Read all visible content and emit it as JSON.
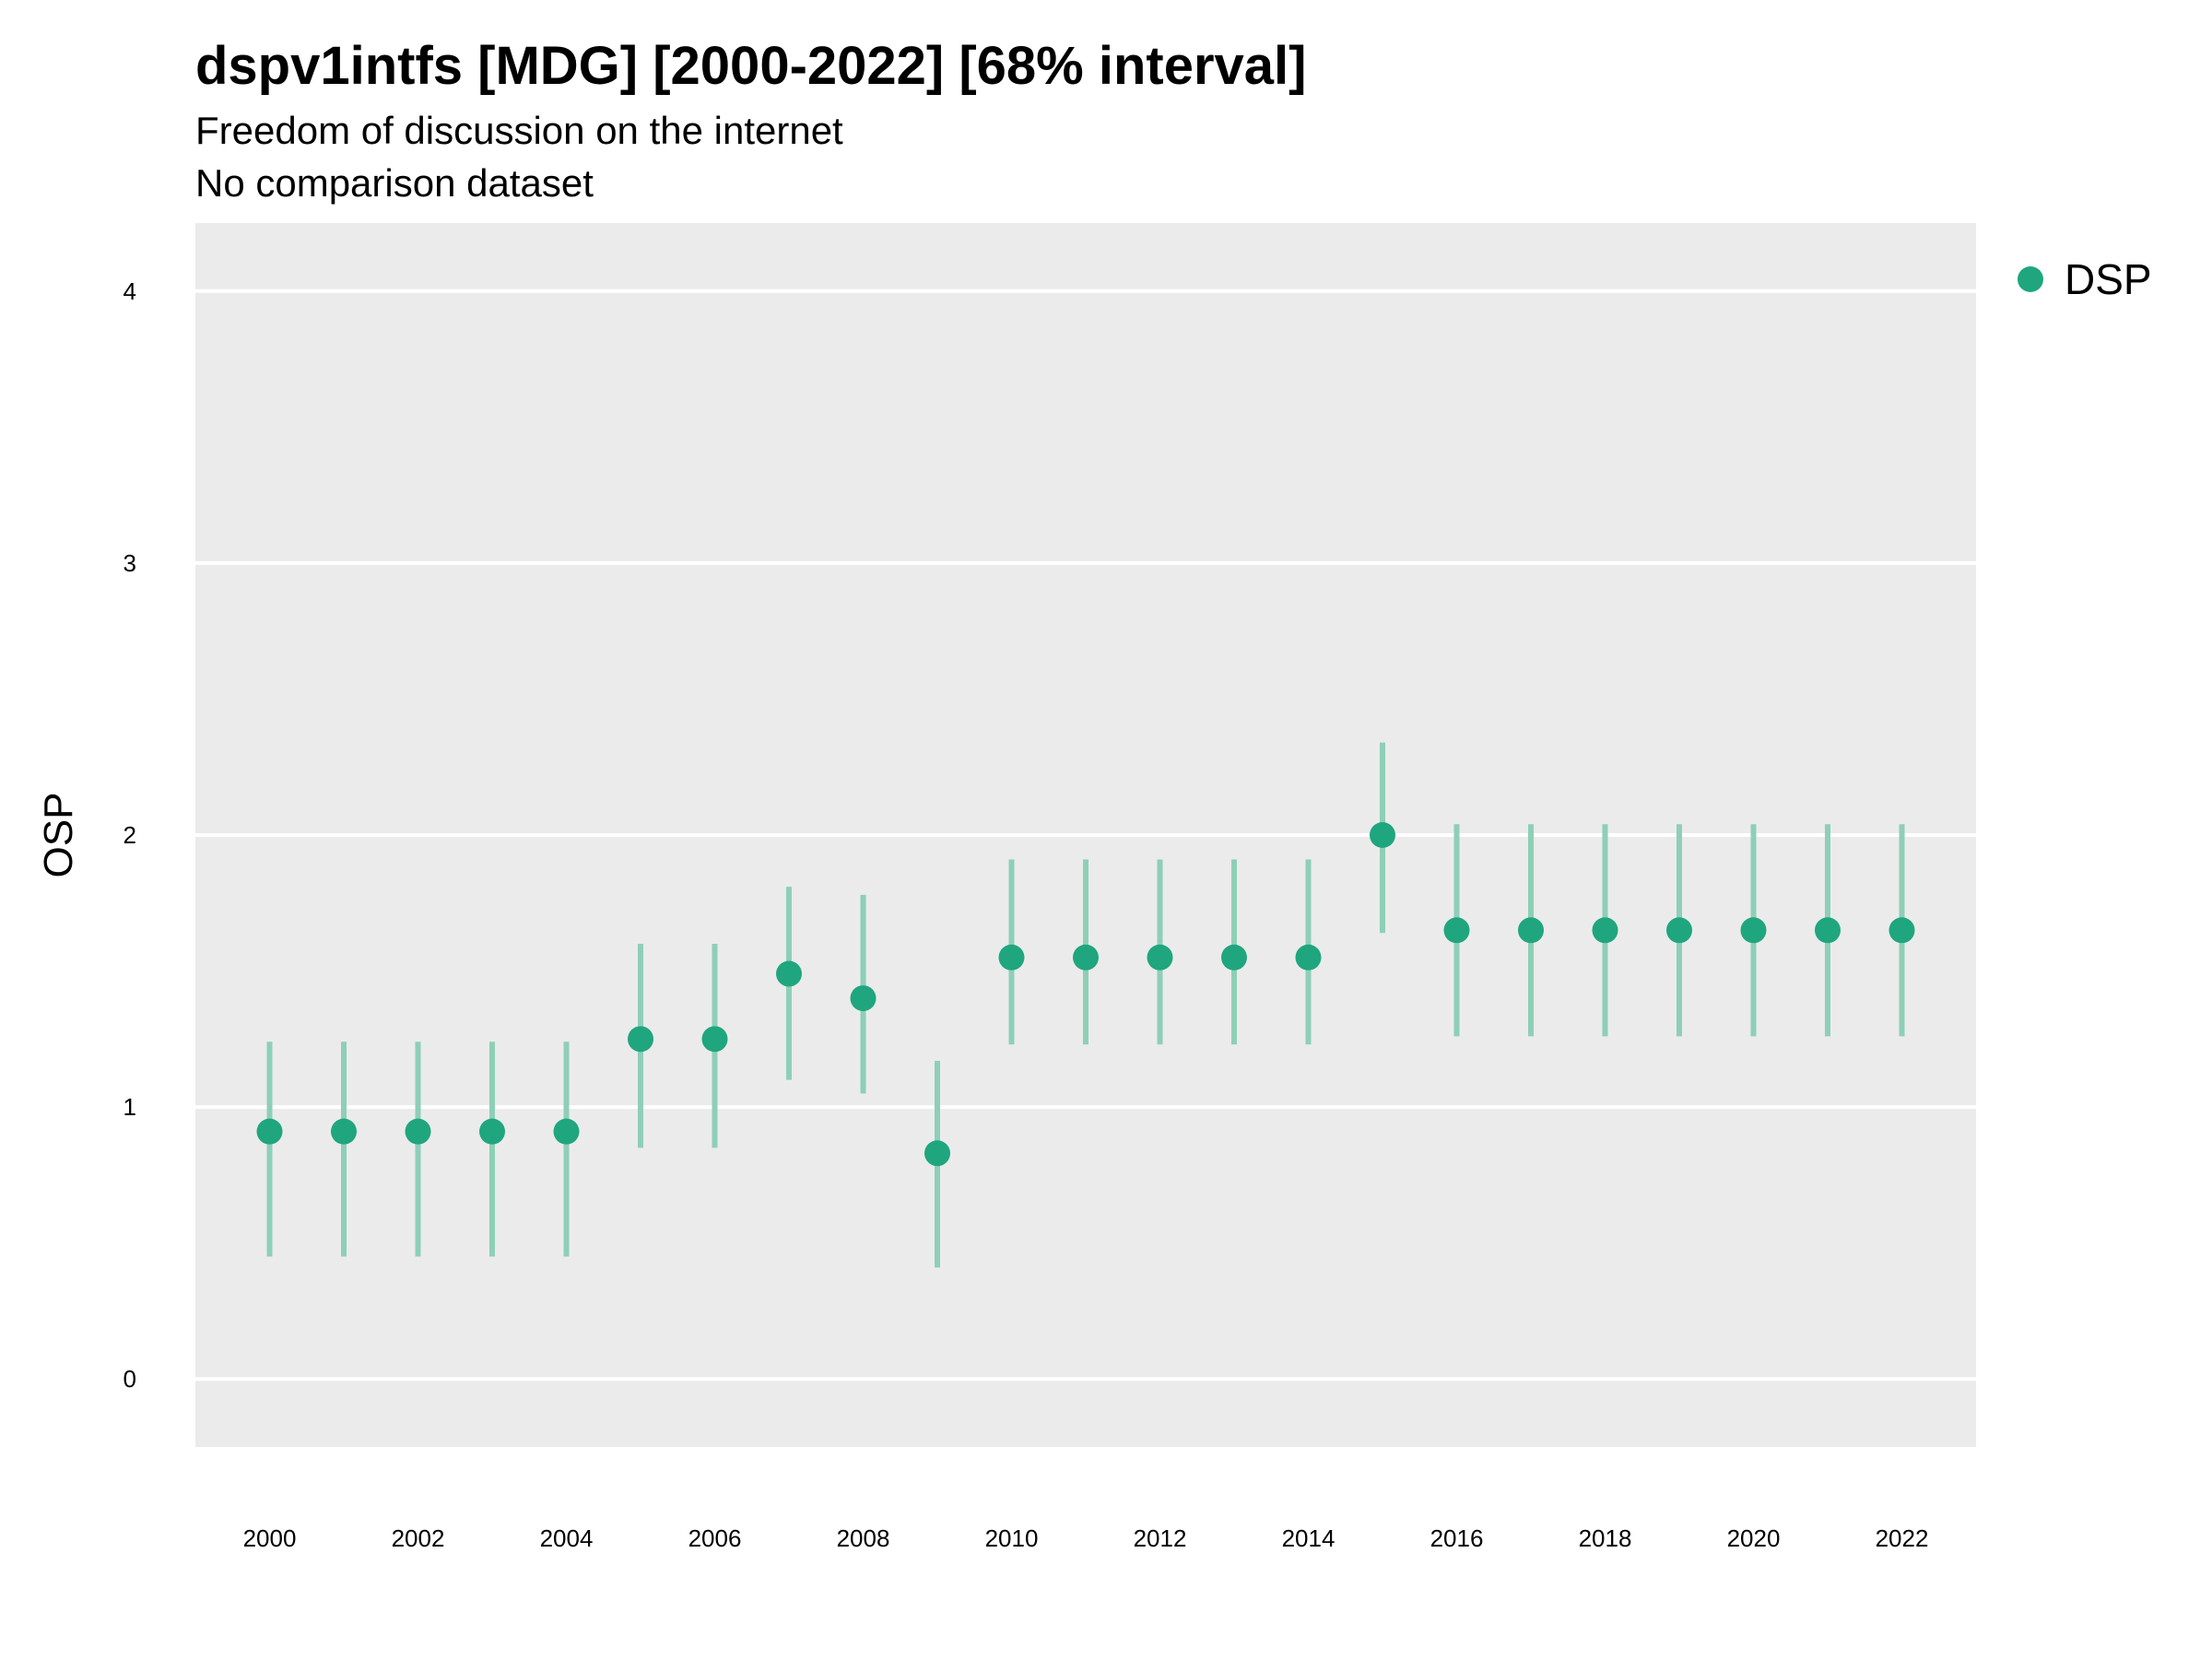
{
  "title": "dspv1intfs [MDG] [2000-2022] [68% interval]",
  "subtitle": "Freedom of discussion on the internet",
  "subtitle2": "No comparison dataset",
  "chart_data": {
    "type": "scatter",
    "ylabel": "OSP",
    "xlabel": "",
    "ylim": [
      -0.25,
      4.25
    ],
    "xlim": [
      1999,
      2023
    ],
    "yticks": [
      0,
      1,
      2,
      3,
      4
    ],
    "xticks": [
      2000,
      2002,
      2004,
      2006,
      2008,
      2010,
      2012,
      2014,
      2016,
      2018,
      2020,
      2022
    ],
    "grid": true,
    "legend": {
      "position": "right",
      "entries": [
        "DSP"
      ]
    },
    "colors": {
      "point": "#1fa67e",
      "interval": "#8ecfb8",
      "panel": "#ebebeb",
      "grid": "#ffffff"
    },
    "series": [
      {
        "name": "DSP",
        "x": [
          2000,
          2001,
          2002,
          2003,
          2004,
          2005,
          2006,
          2007,
          2008,
          2009,
          2010,
          2011,
          2012,
          2013,
          2014,
          2015,
          2016,
          2017,
          2018,
          2019,
          2020,
          2021,
          2022
        ],
        "y": [
          0.91,
          0.91,
          0.91,
          0.91,
          0.91,
          1.25,
          1.25,
          1.49,
          1.4,
          0.83,
          1.55,
          1.55,
          1.55,
          1.55,
          1.55,
          2.0,
          1.65,
          1.65,
          1.65,
          1.65,
          1.65,
          1.65,
          1.65
        ],
        "lower": [
          0.45,
          0.45,
          0.45,
          0.45,
          0.45,
          0.85,
          0.85,
          1.1,
          1.05,
          0.41,
          1.23,
          1.23,
          1.23,
          1.23,
          1.23,
          1.64,
          1.26,
          1.26,
          1.26,
          1.26,
          1.26,
          1.26,
          1.26
        ],
        "upper": [
          1.24,
          1.24,
          1.24,
          1.24,
          1.24,
          1.6,
          1.6,
          1.81,
          1.78,
          1.17,
          1.91,
          1.91,
          1.91,
          1.91,
          1.91,
          2.34,
          2.04,
          2.04,
          2.04,
          2.04,
          2.04,
          2.04,
          2.04
        ]
      }
    ]
  }
}
